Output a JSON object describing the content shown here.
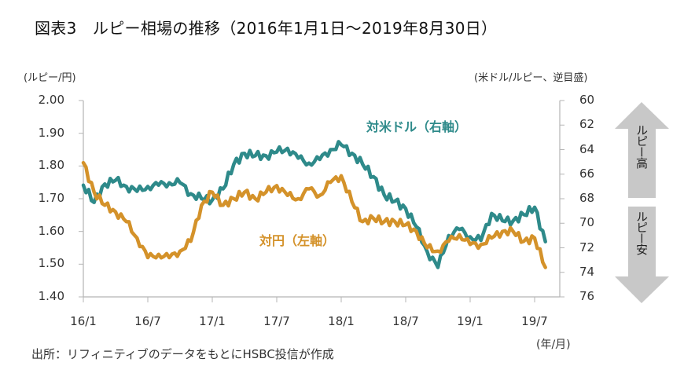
{
  "title": "図表3　ルピー相場の推移（2016年1月1日～2019年8月30日）",
  "chart_data": {
    "type": "line",
    "title": "図表3　ルピー相場の推移（2016年1月1日～2019年8月30日）",
    "xlabel": "(年/月)",
    "ylabel_left": "(ルピー/円)",
    "ylabel_right": "(米ドル/ルピー、逆目盛)",
    "x": [
      "16/1",
      "16/2",
      "16/3",
      "16/4",
      "16/5",
      "16/6",
      "16/7",
      "16/8",
      "16/9",
      "16/10",
      "16/11",
      "16/12",
      "17/1",
      "17/2",
      "17/3",
      "17/4",
      "17/5",
      "17/6",
      "17/7",
      "17/8",
      "17/9",
      "17/10",
      "17/11",
      "17/12",
      "18/1",
      "18/2",
      "18/3",
      "18/4",
      "18/5",
      "18/6",
      "18/7",
      "18/8",
      "18/9",
      "18/10",
      "18/11",
      "18/12",
      "19/1",
      "19/2",
      "19/3",
      "19/4",
      "19/5",
      "19/6",
      "19/7",
      "19/8"
    ],
    "x_tick_labels": [
      "16/1",
      "16/7",
      "17/1",
      "17/7",
      "18/1",
      "18/7",
      "19/1",
      "19/7"
    ],
    "ylim_left": [
      1.4,
      2.0
    ],
    "y_ticks_left": [
      "2.00",
      "1.90",
      "1.80",
      "1.70",
      "1.60",
      "1.50",
      "1.40"
    ],
    "ylim_right": [
      60,
      76
    ],
    "right_axis_inverted": true,
    "y_ticks_right": [
      "60",
      "62",
      "64",
      "66",
      "68",
      "70",
      "72",
      "74",
      "76"
    ],
    "grid": false,
    "series": [
      {
        "name": "対円（左軸）",
        "axis": "left",
        "color": "#d4922a",
        "values": [
          1.81,
          1.72,
          1.68,
          1.66,
          1.63,
          1.58,
          1.52,
          1.53,
          1.52,
          1.54,
          1.57,
          1.68,
          1.72,
          1.68,
          1.7,
          1.72,
          1.7,
          1.72,
          1.74,
          1.71,
          1.7,
          1.73,
          1.71,
          1.75,
          1.77,
          1.69,
          1.63,
          1.64,
          1.63,
          1.63,
          1.62,
          1.6,
          1.55,
          1.54,
          1.57,
          1.59,
          1.56,
          1.56,
          1.58,
          1.6,
          1.6,
          1.57,
          1.58,
          1.49
        ]
      },
      {
        "name": "対米ドル（右軸）",
        "axis": "right",
        "color": "#2e8a8a",
        "values": [
          66.9,
          68.3,
          66.8,
          66.5,
          67.0,
          67.4,
          67.0,
          66.9,
          66.7,
          66.7,
          67.6,
          68.0,
          68.1,
          67.2,
          65.2,
          64.3,
          64.5,
          64.5,
          64.2,
          63.9,
          64.7,
          65.1,
          64.8,
          64.0,
          63.6,
          64.3,
          65.2,
          66.2,
          67.7,
          68.2,
          68.8,
          70.3,
          72.3,
          73.6,
          71.0,
          70.5,
          71.1,
          71.4,
          69.2,
          69.8,
          69.8,
          69.3,
          68.7,
          71.5
        ]
      }
    ],
    "annotations": {
      "arrow_up": "ルピー高",
      "arrow_down": "ルピー安"
    }
  },
  "source": "出所：リフィニティブのデータをもとにHSBC投信が作成"
}
